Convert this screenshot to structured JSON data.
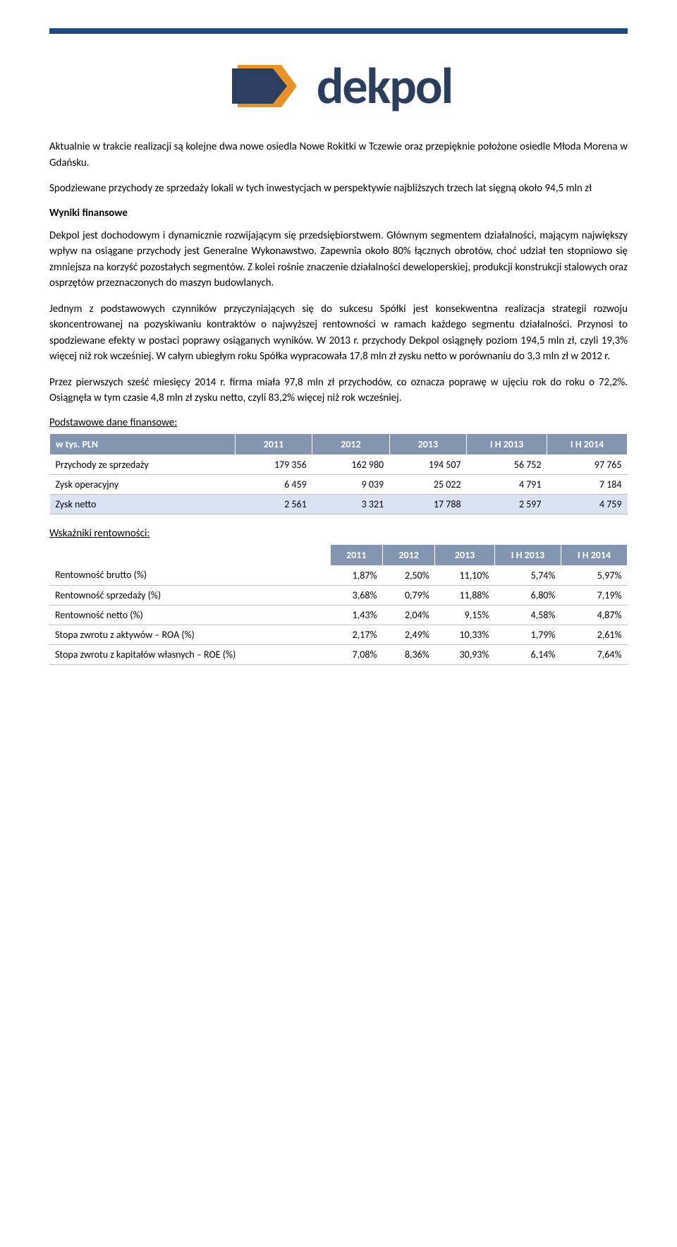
{
  "logo": {
    "text": "dekpol",
    "mark_color_back": "#2c3e5d",
    "mark_color_front": "#e8922a",
    "text_color": "#2c3e5d"
  },
  "paragraphs": {
    "p1": "Aktualnie w trakcie realizacji są kolejne dwa nowe osiedla Nowe Rokitki w Tczewie oraz przepięknie położone osiedle Młoda Morena w Gdańsku.",
    "p2": "Spodziewane przychody ze sprzedaży lokali w tych inwestycjach w perspektywie najbliższych trzech lat sięgną około 94,5 mln zł",
    "h1": "Wyniki finansowe",
    "p3": "Dekpol jest dochodowym i dynamicznie rozwijającym się przedsiębiorstwem. Głównym segmentem działalności, mającym największy wpływ na osiągane przychody jest Generalne Wykonawstwo. Zapewnia około 80% łącznych obrotów, choć udział ten stopniowo się zmniejsza na korzyść pozostałych segmentów. Z kolei rośnie znaczenie działalności deweloperskiej, produkcji konstrukcji stalowych oraz osprzętów przeznaczonych do maszyn budowlanych.",
    "p4": "Jednym z podstawowych czynników przyczyniających się do sukcesu Spółki jest konsekwentna realizacja strategii rozwoju skoncentrowanej na pozyskiwaniu kontraktów o najwyższej rentowności w ramach każdego segmentu działalności. Przynosi to spodziewane efekty w postaci poprawy osiąganych wyników. W 2013 r. przychody Dekpol osiągnęły poziom 194,5 mln zł, czyli 19,3% więcej niż rok wcześniej. W całym ubiegłym roku Spółka wypracowała 17,8 mln zł zysku netto w porównaniu do 3,3 mln zł w 2012 r.",
    "p5": "Przez pierwszych sześć miesięcy 2014 r. firma miała 97,8 mln zł przychodów, co oznacza poprawę w ujęciu rok do roku o 72,2%. Osiągnęła w tym czasie 4,8 mln zł zysku netto, czyli 83,2% więcej niż rok wcześniej.",
    "label1": "Podstawowe dane finansowe:",
    "label2": "Wskaźniki rentowności:"
  },
  "table1": {
    "header_bg": "#8495b2",
    "header_fg": "#ffffff",
    "highlight_bg": "#d9e1f2",
    "border_color": "#bfbfbf",
    "columns": [
      "w tys. PLN",
      "2011",
      "2012",
      "2013",
      "I H 2013",
      "I H 2014"
    ],
    "rows": [
      {
        "label": "Przychody ze sprzedaży",
        "values": [
          "179 356",
          "162 980",
          "194 507",
          "56 752",
          "97 765"
        ],
        "highlight": false
      },
      {
        "label": "Zysk operacyjny",
        "values": [
          "6 459",
          "9 039",
          "25 022",
          "4 791",
          "7 184"
        ],
        "highlight": false
      },
      {
        "label": "Zysk netto",
        "values": [
          "2 561",
          "3 321",
          "17 788",
          "2 597",
          "4 759"
        ],
        "highlight": true
      }
    ]
  },
  "table2": {
    "header_bg": "#8495b2",
    "header_fg": "#ffffff",
    "border_color": "#bfbfbf",
    "columns": [
      "",
      "2011",
      "2012",
      "2013",
      "I H 2013",
      "I H 2014"
    ],
    "rows": [
      {
        "label": "Rentowność brutto (%)",
        "values": [
          "1,87%",
          "2,50%",
          "11,10%",
          "5,74%",
          "5,97%"
        ]
      },
      {
        "label": "Rentowność sprzedaży (%)",
        "values": [
          "3,68%",
          "0,79%",
          "11,88%",
          "6,80%",
          "7,19%"
        ]
      },
      {
        "label": "Rentowność netto (%)",
        "values": [
          "1,43%",
          "2,04%",
          "9,15%",
          "4,58%",
          "4,87%"
        ]
      },
      {
        "label": "Stopa zwrotu z aktywów – ROA (%)",
        "values": [
          "2,17%",
          "2,49%",
          "10,33%",
          "1,79%",
          "2,61%"
        ]
      },
      {
        "label": "Stopa zwrotu z kapitałów własnych – ROE (%)",
        "values": [
          "7,08%",
          "8,36%",
          "30,93%",
          "6,14%",
          "7,64%"
        ]
      }
    ]
  }
}
